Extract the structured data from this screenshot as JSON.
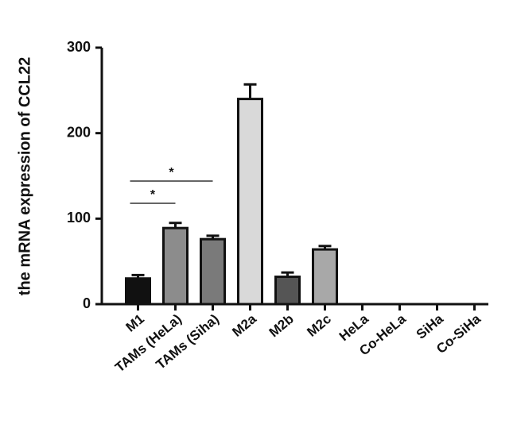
{
  "chart_data": {
    "type": "bar",
    "y_label": "the mRNA expression of CCL22",
    "categories": [
      "M1",
      "TAMs (HeLa)",
      "TAMs (Siha)",
      "M2a",
      "M2b",
      "M2c",
      "HeLa",
      "Co-HeLa",
      "SiHa",
      "Co-SiHa"
    ],
    "values": [
      30,
      89,
      76,
      240,
      32,
      64,
      0,
      0,
      0,
      0
    ],
    "errors": [
      4,
      6,
      4,
      17,
      5,
      4,
      null,
      null,
      null,
      null
    ],
    "colors": [
      "#111111",
      "#8c8c8c",
      "#7a7a7a",
      "#d9d9d9",
      "#555555",
      "#a8a8a8",
      "#ffffff",
      "#ffffff",
      "#ffffff",
      "#ffffff"
    ],
    "ylim": [
      0,
      300
    ],
    "yticks": [
      0,
      100,
      200,
      300
    ],
    "annotations": [
      {
        "from": 0,
        "to": 2,
        "y": 144,
        "label": "*"
      },
      {
        "from": 0,
        "to": 1,
        "y": 118,
        "label": "*"
      }
    ]
  }
}
